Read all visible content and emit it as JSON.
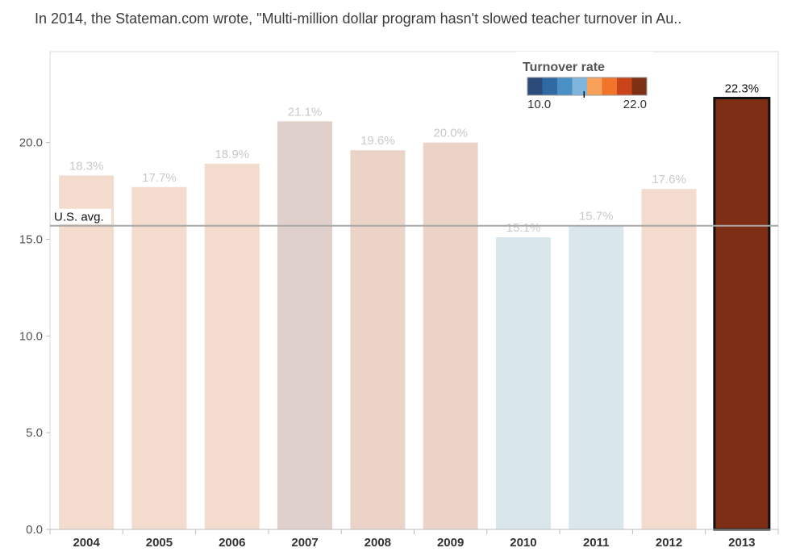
{
  "header": {
    "title": "In 2014, the Stateman.com wrote, \"Multi-million dollar program hasn't slowed teacher turnover in Au.."
  },
  "legend": {
    "title": "Turnover rate",
    "min_label": "10.0",
    "max_label": "22.0",
    "colors": [
      "#2b4b7a",
      "#2f6aa3",
      "#4a90c4",
      "#7fb6de",
      "#f7a15a",
      "#f0742a",
      "#c9441a",
      "#7e3015"
    ],
    "marker_value": 15.7
  },
  "chart_data": {
    "type": "bar",
    "categories": [
      "2004",
      "2005",
      "2006",
      "2007",
      "2008",
      "2009",
      "2010",
      "2011",
      "2012",
      "2013"
    ],
    "values": [
      18.3,
      17.7,
      18.9,
      21.1,
      19.6,
      20.0,
      15.1,
      15.7,
      17.6,
      22.3
    ],
    "labels": [
      "18.3%",
      "17.7%",
      "18.9%",
      "21.1%",
      "19.6%",
      "20.0%",
      "15.1%",
      "15.7%",
      "17.6%",
      "22.3%"
    ],
    "bar_colors": [
      "#f3dbcd",
      "#f3dbcd",
      "#f3dbcd",
      "#e0d0cb",
      "#ecd3c8",
      "#ecd3c8",
      "#d9e6ec",
      "#d9e6ec",
      "#f3dbcd",
      "#7e2e14"
    ],
    "highlighted_index": 9,
    "reference_line": {
      "label": "U.S. avg.",
      "value": 15.7
    },
    "yticks": [
      "0.0",
      "5.0",
      "10.0",
      "15.0",
      "20.0"
    ],
    "ytick_values": [
      0,
      5,
      10,
      15,
      20
    ],
    "ylim": [
      0,
      24.7
    ],
    "grid": false,
    "legend_position": "top-right"
  }
}
